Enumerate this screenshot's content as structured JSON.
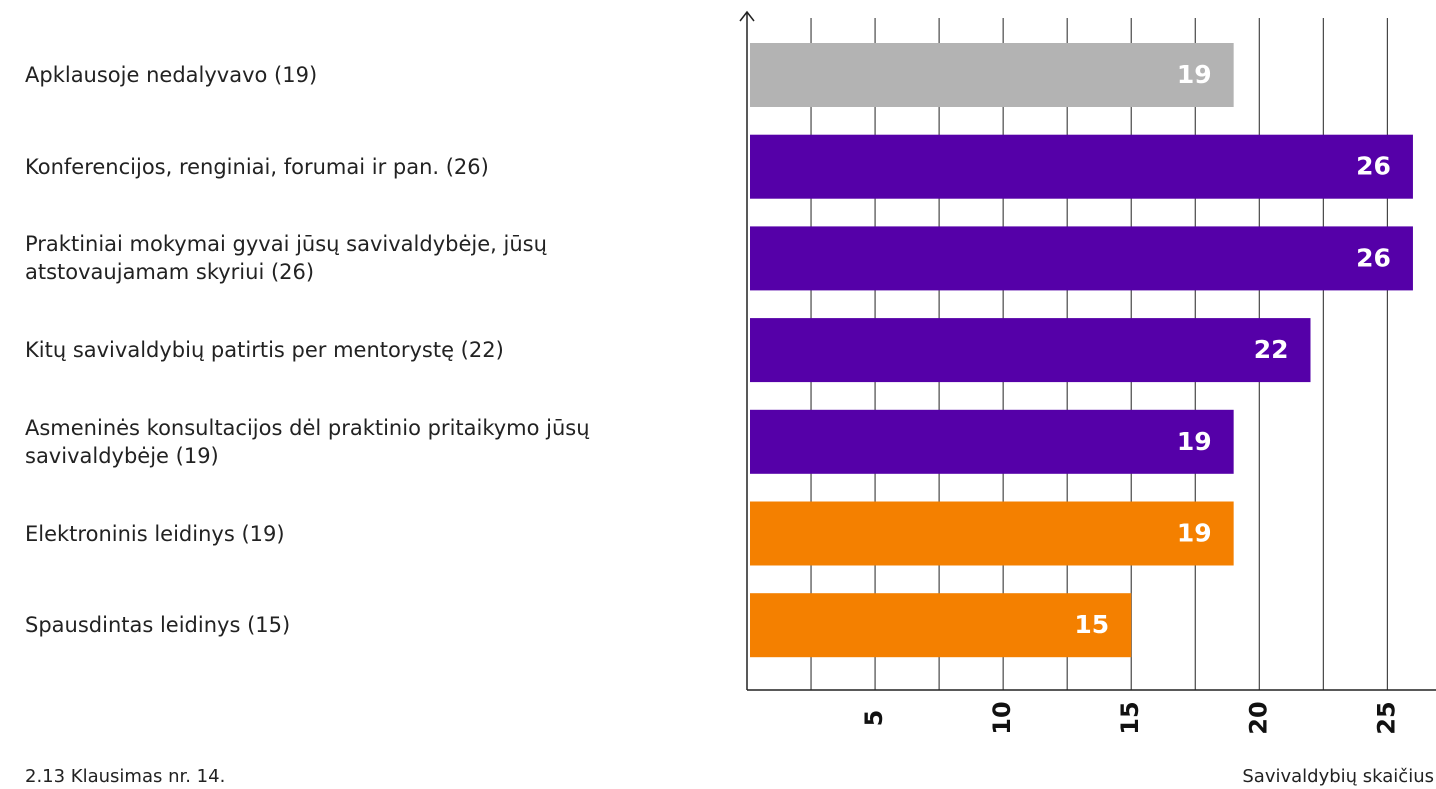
{
  "chart_data": {
    "type": "bar",
    "orientation": "horizontal",
    "categories": [
      "Apklausoje nedalyvavo (19)",
      "Konferencijos, renginiai, forumai ir pan. (26)",
      "Praktiniai mokymai gyvai jūsų savivaldybėje, jūsų atstovaujamam skyriui (26)",
      "Kitų savivaldybių patirtis per mentorystę (22)",
      "Asmeninės konsultacijos dėl praktinio pritaikymo jūsų savivaldybėje (19)",
      "Elektroninis leidinys (19)",
      "Spausdintas leidinys (15)"
    ],
    "values": [
      19,
      26,
      26,
      22,
      19,
      19,
      15
    ],
    "colors": [
      "#b3b3b3",
      "#5500a8",
      "#5500a8",
      "#5500a8",
      "#5500a8",
      "#f48000",
      "#f48000"
    ],
    "xlim": [
      0,
      26.9
    ],
    "xticks": [
      5,
      10,
      15,
      20,
      25
    ],
    "minor_xticks": [
      2.5,
      7.5,
      12.5,
      17.5,
      22.5
    ],
    "grid": true,
    "xlabel": "Savivaldybių skaičius",
    "caption": "2.13 Klausimas nr. 14."
  }
}
